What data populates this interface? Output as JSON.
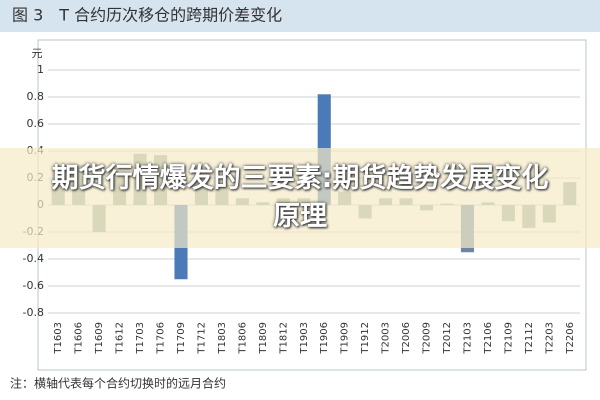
{
  "chart_data": {
    "type": "bar",
    "title": "图 3　T 合约历次移仓的跨期价差变化",
    "y_label": "元",
    "categories": [
      "T1603",
      "T1606",
      "T1609",
      "T1612",
      "T1703",
      "T1706",
      "T1709",
      "T1712",
      "T1803",
      "T1806",
      "T1809",
      "T1812",
      "T1903",
      "T1906",
      "T1909",
      "T1912",
      "T2003",
      "T2006",
      "T2009",
      "T2012",
      "T2103",
      "T2106",
      "T2109",
      "T2112",
      "T2203",
      "T2206"
    ],
    "values": [
      0.28,
      0.3,
      -0.2,
      0.2,
      0.38,
      0.37,
      -0.55,
      0.2,
      0.15,
      0.05,
      0.02,
      0.05,
      0.05,
      0.82,
      0.1,
      -0.1,
      0.05,
      0.05,
      -0.04,
      0.01,
      -0.35,
      0.02,
      -0.12,
      -0.17,
      -0.13,
      0.17
    ],
    "colors": [
      "#9aab9f",
      "#9aab9f",
      "#9aab9f",
      "#9aab9f",
      "#9aab9f",
      "#9aab9f",
      "#4a7ab7",
      "#9aab9f",
      "#9aab9f",
      "#9aab9f",
      "#9aab9f",
      "#9aab9f",
      "#9aab9f",
      "#4a7ab7",
      "#9aab9f",
      "#9aab9f",
      "#9aab9f",
      "#9aab9f",
      "#9aab9f",
      "#9aab9f",
      "#6f86a3",
      "#9aab9f",
      "#9aab9f",
      "#9aab9f",
      "#9aab9f",
      "#9aab9f"
    ],
    "ylim": [
      -0.8,
      1
    ],
    "yticks": [
      -0.8,
      -0.6,
      -0.4,
      -0.2,
      0,
      0.2,
      0.4,
      0.6,
      0.8,
      1
    ],
    "grid": true,
    "note": "注：横轴代表每个合约切换时的远月合约"
  },
  "overlay_text": "期货行情爆发的三要素:期货趋势发展变化原理"
}
